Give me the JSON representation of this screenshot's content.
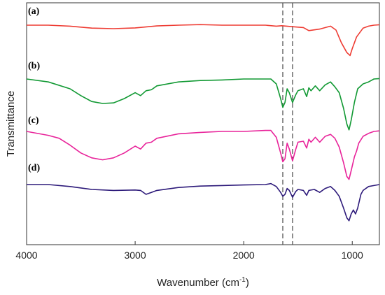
{
  "chart_data": {
    "type": "line",
    "xlabel": "Wavenumber (cm",
    "xlabel_sup": "-1",
    "xlabel_close": ")",
    "ylabel": "Transmittance",
    "xlim": [
      4000,
      750
    ],
    "x_reversed": true,
    "x_ticks": [
      4000,
      3000,
      2000,
      1000
    ],
    "y_ticks_shown": false,
    "grid": false,
    "reference_lines_x": [
      1640,
      1550
    ],
    "series": [
      {
        "name": "(a)",
        "color": "#ee3b32",
        "points": [
          [
            4000,
            0.0
          ],
          [
            3800,
            0.0
          ],
          [
            3600,
            -0.05
          ],
          [
            3400,
            -0.15
          ],
          [
            3200,
            -0.18
          ],
          [
            3000,
            -0.14
          ],
          [
            2800,
            -0.04
          ],
          [
            2600,
            0.0
          ],
          [
            2400,
            0.03
          ],
          [
            2200,
            0.0
          ],
          [
            2000,
            0.0
          ],
          [
            1800,
            0.0
          ],
          [
            1700,
            -0.05
          ],
          [
            1650,
            -0.03
          ],
          [
            1550,
            -0.08
          ],
          [
            1450,
            -0.12
          ],
          [
            1400,
            -0.28
          ],
          [
            1300,
            -0.2
          ],
          [
            1200,
            -0.05
          ],
          [
            1150,
            -0.25
          ],
          [
            1100,
            -0.9
          ],
          [
            1050,
            -1.4
          ],
          [
            1020,
            -1.55
          ],
          [
            1000,
            -1.2
          ],
          [
            960,
            -0.6
          ],
          [
            900,
            -0.15
          ],
          [
            850,
            -0.05
          ],
          [
            800,
            0.0
          ],
          [
            750,
            0.02
          ]
        ]
      },
      {
        "name": "(b)",
        "color": "#119933",
        "points": [
          [
            4000,
            0.0
          ],
          [
            3800,
            -0.15
          ],
          [
            3600,
            -0.5
          ],
          [
            3500,
            -0.85
          ],
          [
            3400,
            -1.15
          ],
          [
            3300,
            -1.25
          ],
          [
            3200,
            -1.22
          ],
          [
            3100,
            -1.0
          ],
          [
            3000,
            -0.7
          ],
          [
            2950,
            -0.85
          ],
          [
            2900,
            -0.6
          ],
          [
            2850,
            -0.55
          ],
          [
            2800,
            -0.35
          ],
          [
            2600,
            -0.15
          ],
          [
            2400,
            -0.08
          ],
          [
            2200,
            -0.05
          ],
          [
            2000,
            0.0
          ],
          [
            1800,
            0.0
          ],
          [
            1750,
            0.0
          ],
          [
            1700,
            -0.25
          ],
          [
            1660,
            -1.0
          ],
          [
            1640,
            -1.45
          ],
          [
            1620,
            -1.2
          ],
          [
            1600,
            -0.5
          ],
          [
            1580,
            -0.7
          ],
          [
            1550,
            -1.2
          ],
          [
            1520,
            -0.8
          ],
          [
            1500,
            -0.6
          ],
          [
            1450,
            -0.5
          ],
          [
            1420,
            -0.9
          ],
          [
            1400,
            -0.45
          ],
          [
            1380,
            -0.6
          ],
          [
            1340,
            -0.35
          ],
          [
            1300,
            -0.6
          ],
          [
            1250,
            -0.3
          ],
          [
            1200,
            -0.15
          ],
          [
            1160,
            -0.4
          ],
          [
            1120,
            -0.7
          ],
          [
            1080,
            -1.5
          ],
          [
            1050,
            -2.3
          ],
          [
            1030,
            -2.6
          ],
          [
            1010,
            -2.1
          ],
          [
            980,
            -1.2
          ],
          [
            950,
            -0.5
          ],
          [
            900,
            -0.25
          ],
          [
            850,
            -0.15
          ],
          [
            800,
            0.0
          ],
          [
            750,
            0.02
          ]
        ]
      },
      {
        "name": "(c)",
        "color": "#e8239a",
        "points": [
          [
            4000,
            0.0
          ],
          [
            3800,
            -0.2
          ],
          [
            3700,
            -0.35
          ],
          [
            3600,
            -0.7
          ],
          [
            3500,
            -1.1
          ],
          [
            3400,
            -1.35
          ],
          [
            3300,
            -1.45
          ],
          [
            3200,
            -1.35
          ],
          [
            3100,
            -1.1
          ],
          [
            3000,
            -0.75
          ],
          [
            2950,
            -0.9
          ],
          [
            2900,
            -0.6
          ],
          [
            2850,
            -0.55
          ],
          [
            2800,
            -0.35
          ],
          [
            2600,
            -0.12
          ],
          [
            2400,
            -0.05
          ],
          [
            2200,
            0.0
          ],
          [
            2000,
            0.0
          ],
          [
            1800,
            0.05
          ],
          [
            1750,
            0.05
          ],
          [
            1700,
            -0.3
          ],
          [
            1660,
            -1.1
          ],
          [
            1640,
            -1.55
          ],
          [
            1620,
            -1.4
          ],
          [
            1600,
            -0.6
          ],
          [
            1580,
            -0.9
          ],
          [
            1550,
            -1.5
          ],
          [
            1520,
            -0.9
          ],
          [
            1500,
            -0.55
          ],
          [
            1450,
            -0.5
          ],
          [
            1420,
            -0.85
          ],
          [
            1400,
            -0.4
          ],
          [
            1380,
            -0.55
          ],
          [
            1340,
            -0.3
          ],
          [
            1300,
            -0.55
          ],
          [
            1250,
            -0.25
          ],
          [
            1200,
            -0.15
          ],
          [
            1160,
            -0.35
          ],
          [
            1120,
            -0.8
          ],
          [
            1080,
            -1.6
          ],
          [
            1050,
            -2.3
          ],
          [
            1030,
            -2.45
          ],
          [
            1010,
            -2.0
          ],
          [
            980,
            -1.3
          ],
          [
            960,
            -1.0
          ],
          [
            940,
            -0.6
          ],
          [
            900,
            -0.25
          ],
          [
            850,
            -0.1
          ],
          [
            800,
            0.0
          ],
          [
            750,
            0.03
          ]
        ]
      },
      {
        "name": "(d)",
        "color": "#2d1a7a",
        "points": [
          [
            4000,
            0.0
          ],
          [
            3800,
            0.0
          ],
          [
            3600,
            -0.1
          ],
          [
            3400,
            -0.25
          ],
          [
            3200,
            -0.3
          ],
          [
            3000,
            -0.28
          ],
          [
            2950,
            -0.3
          ],
          [
            2900,
            -0.5
          ],
          [
            2850,
            -0.4
          ],
          [
            2800,
            -0.3
          ],
          [
            2600,
            -0.15
          ],
          [
            2400,
            -0.08
          ],
          [
            2200,
            -0.05
          ],
          [
            2000,
            -0.02
          ],
          [
            1800,
            0.0
          ],
          [
            1750,
            0.05
          ],
          [
            1700,
            -0.1
          ],
          [
            1660,
            -0.4
          ],
          [
            1640,
            -0.6
          ],
          [
            1620,
            -0.5
          ],
          [
            1600,
            -0.2
          ],
          [
            1580,
            -0.3
          ],
          [
            1550,
            -0.65
          ],
          [
            1520,
            -0.35
          ],
          [
            1500,
            -0.25
          ],
          [
            1450,
            -0.3
          ],
          [
            1420,
            -0.55
          ],
          [
            1400,
            -0.3
          ],
          [
            1350,
            -0.25
          ],
          [
            1300,
            -0.4
          ],
          [
            1250,
            -0.2
          ],
          [
            1200,
            -0.1
          ],
          [
            1160,
            -0.3
          ],
          [
            1120,
            -0.6
          ],
          [
            1080,
            -1.2
          ],
          [
            1050,
            -1.7
          ],
          [
            1030,
            -1.85
          ],
          [
            1010,
            -1.5
          ],
          [
            990,
            -1.3
          ],
          [
            970,
            -1.5
          ],
          [
            950,
            -1.2
          ],
          [
            920,
            -0.5
          ],
          [
            900,
            -0.3
          ],
          [
            850,
            -0.1
          ],
          [
            800,
            -0.05
          ],
          [
            750,
            0.0
          ]
        ]
      }
    ]
  }
}
